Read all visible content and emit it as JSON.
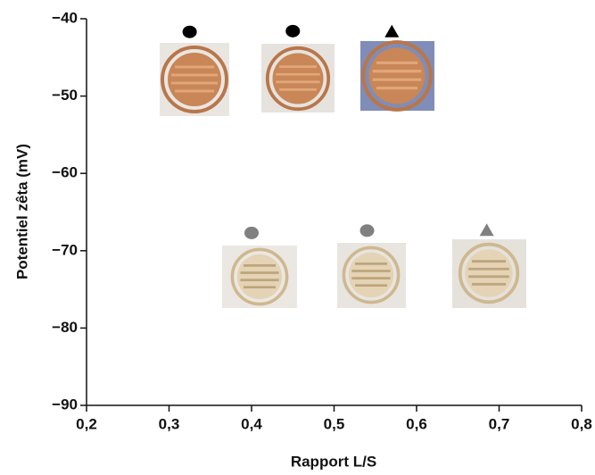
{
  "chart_data": {
    "type": "scatter",
    "x_label": "Rapport L/S",
    "y_label": "Potentiel zêta (mV)",
    "xlim": [
      0.2,
      0.8
    ],
    "ylim": [
      -90,
      -40
    ],
    "xticks": [
      {
        "value": 0.2,
        "label": "0,2"
      },
      {
        "value": 0.3,
        "label": "0,3"
      },
      {
        "value": 0.4,
        "label": "0,4"
      },
      {
        "value": 0.5,
        "label": "0,5"
      },
      {
        "value": 0.6,
        "label": "0,6"
      },
      {
        "value": 0.7,
        "label": "0,7"
      },
      {
        "value": 0.8,
        "label": "0,8"
      }
    ],
    "yticks": [
      {
        "value": -90,
        "label": "−90"
      },
      {
        "value": -80,
        "label": "−80"
      },
      {
        "value": -70,
        "label": "−70"
      },
      {
        "value": -60,
        "label": "−60"
      },
      {
        "value": -50,
        "label": "−50"
      },
      {
        "value": -40,
        "label": "−40"
      }
    ],
    "series": [
      {
        "color": "#000000",
        "x": [
          0.325,
          0.45,
          0.57
        ],
        "values": [
          -41.7,
          -41.6,
          -41.7
        ],
        "markers": [
          "circle",
          "circle",
          "triangle"
        ]
      },
      {
        "color": "#808080",
        "x": [
          0.4,
          0.54,
          0.685
        ],
        "values": [
          -67.7,
          -67.4,
          -67.4
        ],
        "markers": [
          "circle",
          "circle",
          "triangle"
        ]
      }
    ]
  }
}
